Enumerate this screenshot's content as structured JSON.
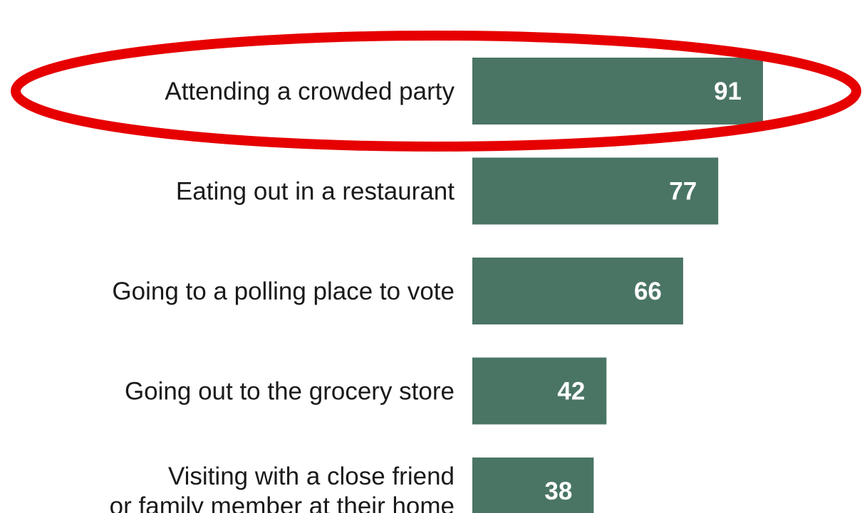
{
  "chart_data": {
    "type": "bar",
    "orientation": "horizontal",
    "categories": [
      [
        "Attending a crowded party"
      ],
      [
        "Eating out in a restaurant"
      ],
      [
        "Going to a polling place to vote"
      ],
      [
        "Going out to the grocery store"
      ],
      [
        "Visiting with a close friend",
        "or family member at their home"
      ]
    ],
    "values": [
      91,
      77,
      66,
      42,
      38
    ],
    "data_labels": [
      "91",
      "77",
      "66",
      "42",
      "38"
    ],
    "title": "",
    "xlabel": "",
    "ylabel": "",
    "xlim": [
      0,
      100
    ],
    "grid": false,
    "legend": "none",
    "highlight": {
      "category_index": 0,
      "shape": "ellipse",
      "color": "#e60000"
    }
  },
  "colors": {
    "bar": "#4a7565",
    "bar_label": "#ffffff",
    "text": "#1a1a1a",
    "highlight": "#e60000"
  }
}
